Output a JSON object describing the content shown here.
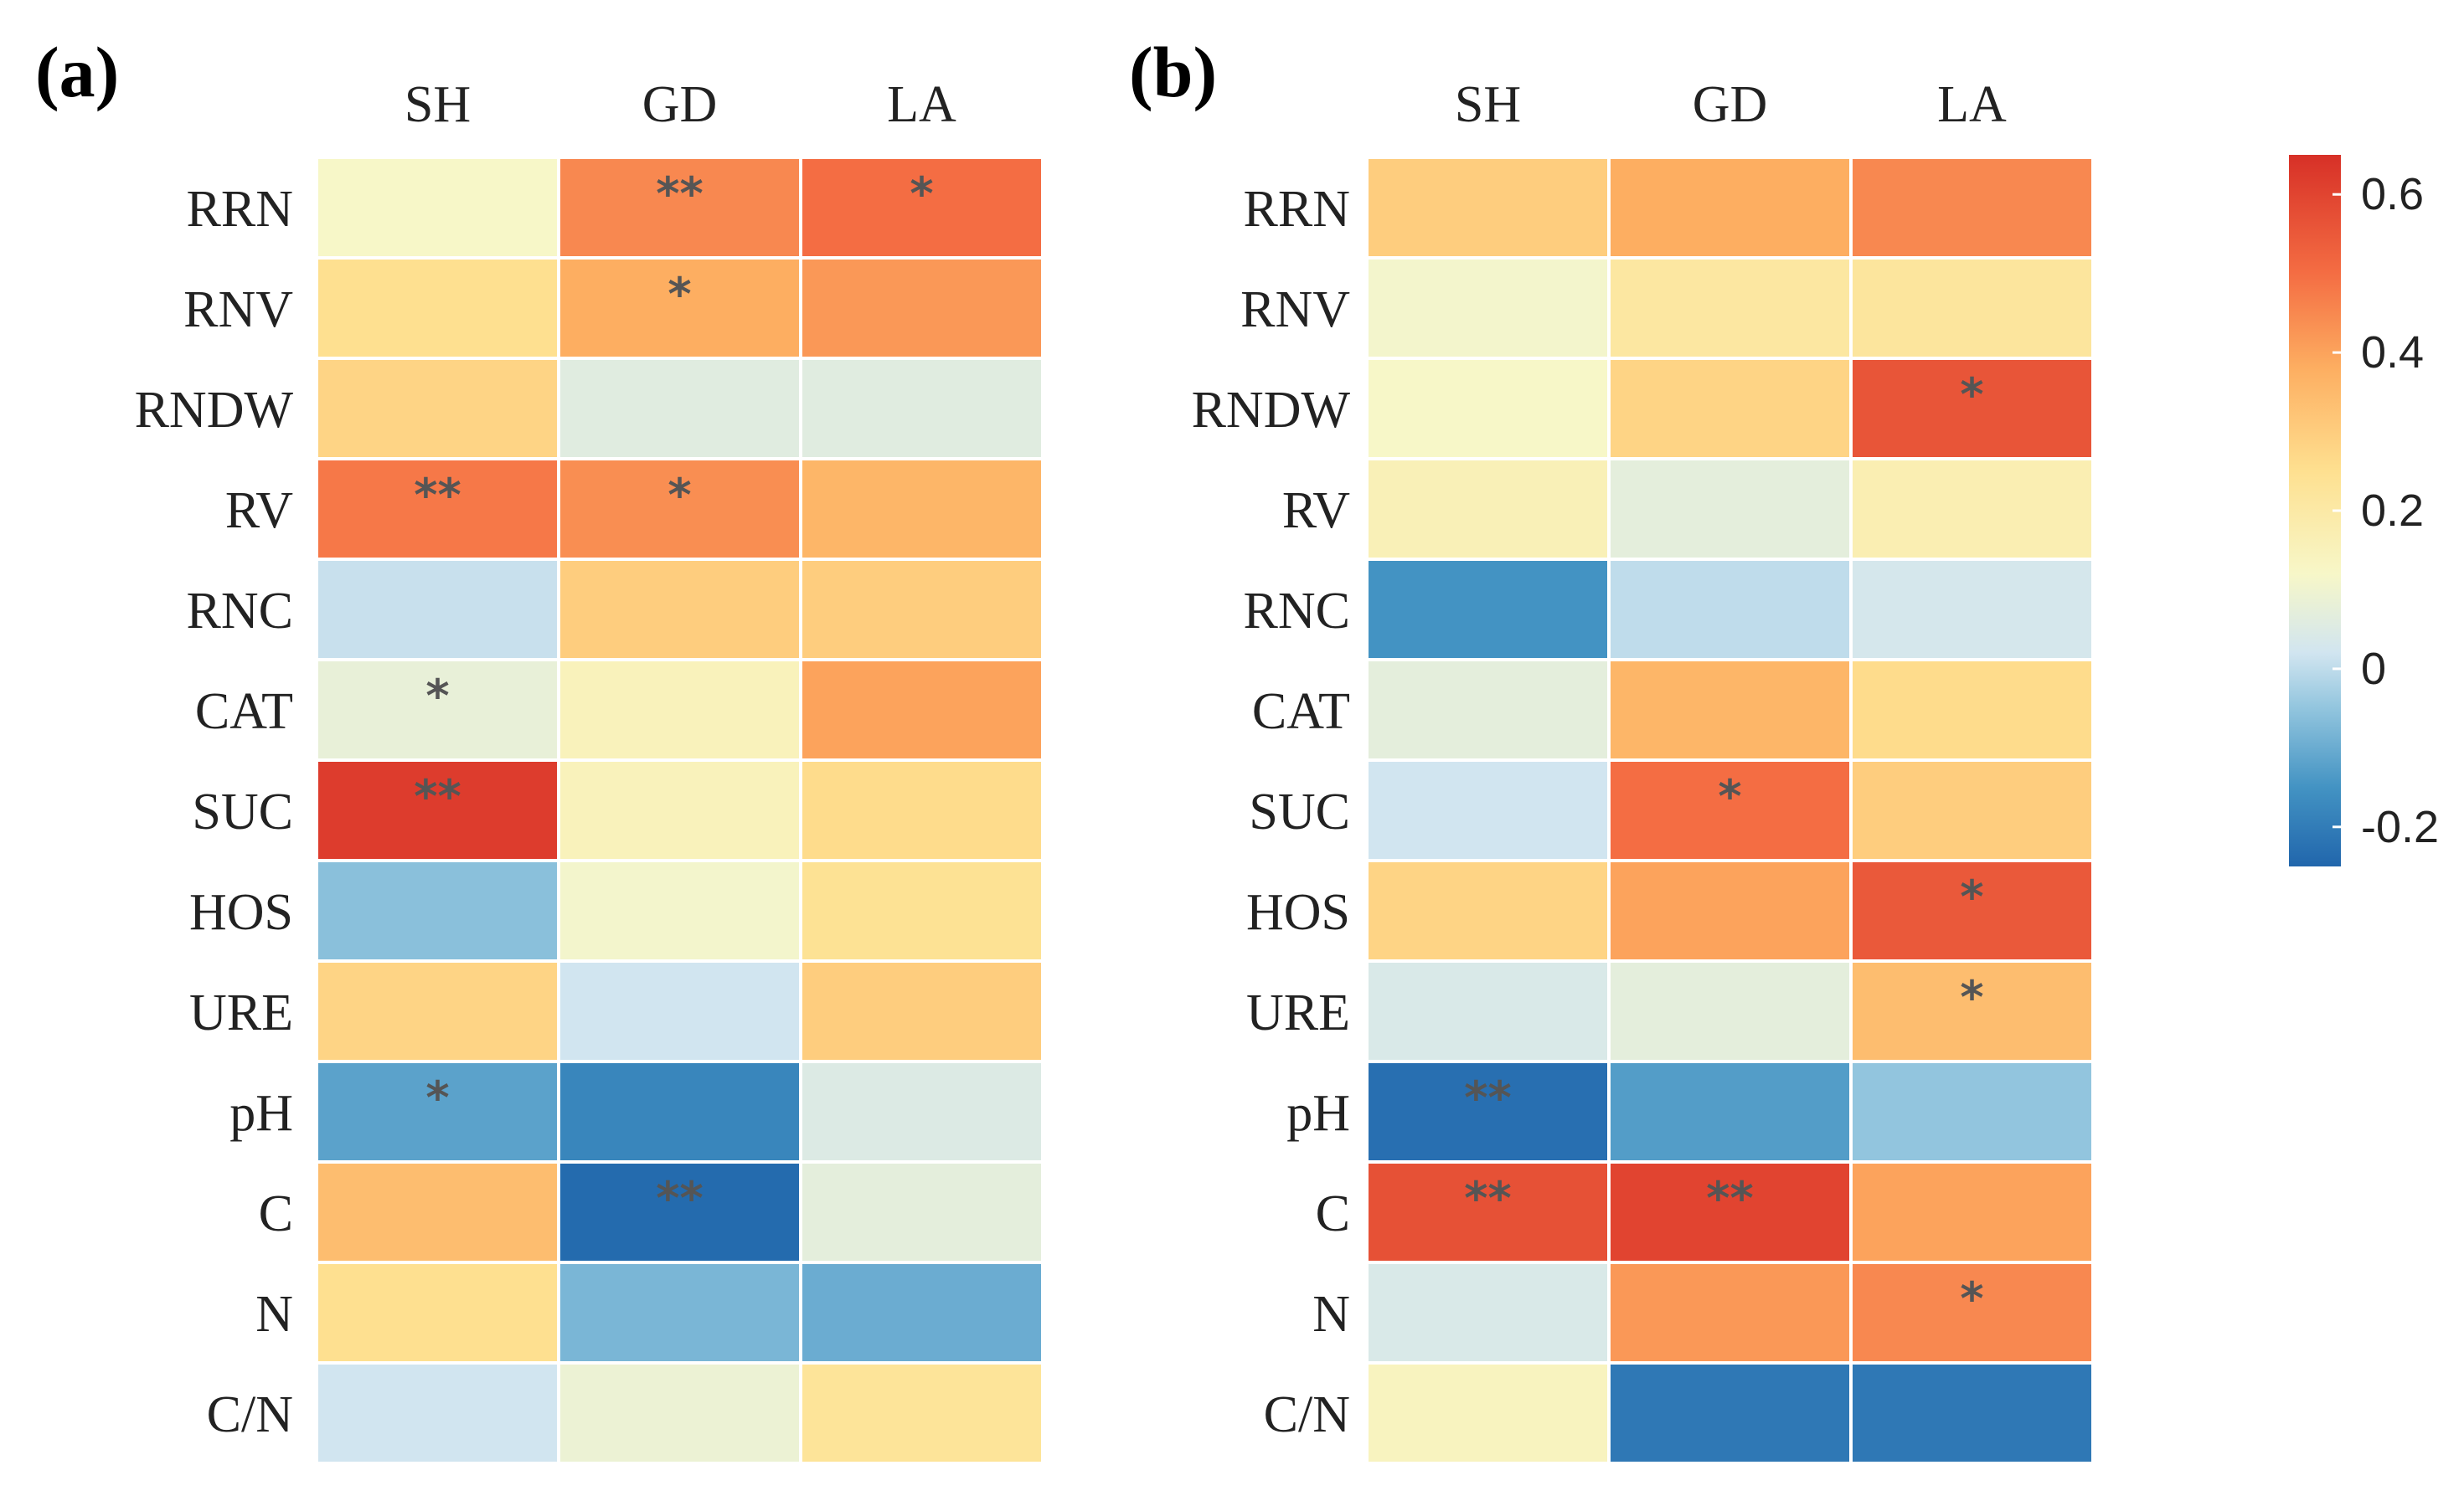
{
  "chart_data": [
    {
      "type": "heatmap",
      "panel_label": "(a)",
      "columns": [
        "SH",
        "GD",
        "LA"
      ],
      "rows": [
        "RRN",
        "RNV",
        "RNDW",
        "RV",
        "RNC",
        "CAT",
        "SUC",
        "HOS",
        "URE",
        "pH",
        "C",
        "N",
        "C/N"
      ],
      "values": [
        [
          0.12,
          0.45,
          0.5
        ],
        [
          0.25,
          0.38,
          0.42
        ],
        [
          0.28,
          0.06,
          0.06
        ],
        [
          0.48,
          0.44,
          0.36
        ],
        [
          0.01,
          0.3,
          0.3
        ],
        [
          0.08,
          0.15,
          0.4
        ],
        [
          0.62,
          0.15,
          0.26
        ],
        [
          -0.06,
          0.11,
          0.24
        ],
        [
          0.28,
          0.02,
          0.3
        ],
        [
          -0.12,
          -0.18,
          0.05
        ],
        [
          0.34,
          -0.24,
          0.07
        ],
        [
          0.25,
          -0.08,
          -0.1
        ],
        [
          0.02,
          0.09,
          0.23
        ]
      ],
      "significance": [
        [
          "",
          "**",
          "*"
        ],
        [
          "",
          "*",
          ""
        ],
        [
          "",
          "",
          ""
        ],
        [
          "**",
          "*",
          ""
        ],
        [
          "",
          "",
          ""
        ],
        [
          "*",
          "",
          ""
        ],
        [
          "**",
          "",
          ""
        ],
        [
          "",
          "",
          ""
        ],
        [
          "",
          "",
          ""
        ],
        [
          "*",
          "",
          ""
        ],
        [
          "",
          "**",
          ""
        ],
        [
          "",
          "",
          ""
        ],
        [
          "",
          "",
          ""
        ]
      ]
    },
    {
      "type": "heatmap",
      "panel_label": "(b)",
      "columns": [
        "SH",
        "GD",
        "LA"
      ],
      "rows": [
        "RRN",
        "RNV",
        "RNDW",
        "RV",
        "RNC",
        "CAT",
        "SUC",
        "HOS",
        "URE",
        "pH",
        "C",
        "N",
        "C/N"
      ],
      "values": [
        [
          0.3,
          0.38,
          0.45
        ],
        [
          0.11,
          0.21,
          0.22
        ],
        [
          0.12,
          0.28,
          0.56
        ],
        [
          0.16,
          0.07,
          0.17
        ],
        [
          -0.15,
          0.0,
          0.03
        ],
        [
          0.07,
          0.36,
          0.26
        ],
        [
          0.02,
          0.5,
          0.3
        ],
        [
          0.28,
          0.4,
          0.55
        ],
        [
          0.04,
          0.07,
          0.34
        ],
        [
          -0.23,
          -0.13,
          -0.05
        ],
        [
          0.57,
          0.6,
          0.4
        ],
        [
          0.04,
          0.42,
          0.45
        ],
        [
          0.14,
          -0.21,
          -0.21
        ]
      ],
      "significance": [
        [
          "",
          "",
          ""
        ],
        [
          "",
          "",
          ""
        ],
        [
          "",
          "",
          "*"
        ],
        [
          "",
          "",
          ""
        ],
        [
          "",
          "",
          ""
        ],
        [
          "",
          "",
          ""
        ],
        [
          "",
          "*",
          ""
        ],
        [
          "",
          "",
          "*"
        ],
        [
          "",
          "",
          "*"
        ],
        [
          "**",
          "",
          ""
        ],
        [
          "**",
          "**",
          ""
        ],
        [
          "",
          "",
          "*"
        ],
        [
          "",
          "",
          ""
        ]
      ]
    }
  ],
  "colorbar": {
    "ticks": [
      {
        "value": 0.6,
        "label": "0.6"
      },
      {
        "value": 0.4,
        "label": "0.4"
      },
      {
        "value": 0.2,
        "label": "0.2"
      },
      {
        "value": 0.0,
        "label": "0"
      },
      {
        "value": -0.2,
        "label": "-0.2"
      }
    ],
    "range": [
      -0.25,
      0.65
    ],
    "stops": [
      {
        "value": -0.25,
        "color": "#2166ac"
      },
      {
        "value": -0.15,
        "color": "#4393c3"
      },
      {
        "value": -0.05,
        "color": "#92c5de"
      },
      {
        "value": 0.02,
        "color": "#d1e5f0"
      },
      {
        "value": 0.12,
        "color": "#f7f7c8"
      },
      {
        "value": 0.25,
        "color": "#fee090"
      },
      {
        "value": 0.38,
        "color": "#fdae61"
      },
      {
        "value": 0.5,
        "color": "#f46d43"
      },
      {
        "value": 0.65,
        "color": "#d73027"
      }
    ]
  }
}
